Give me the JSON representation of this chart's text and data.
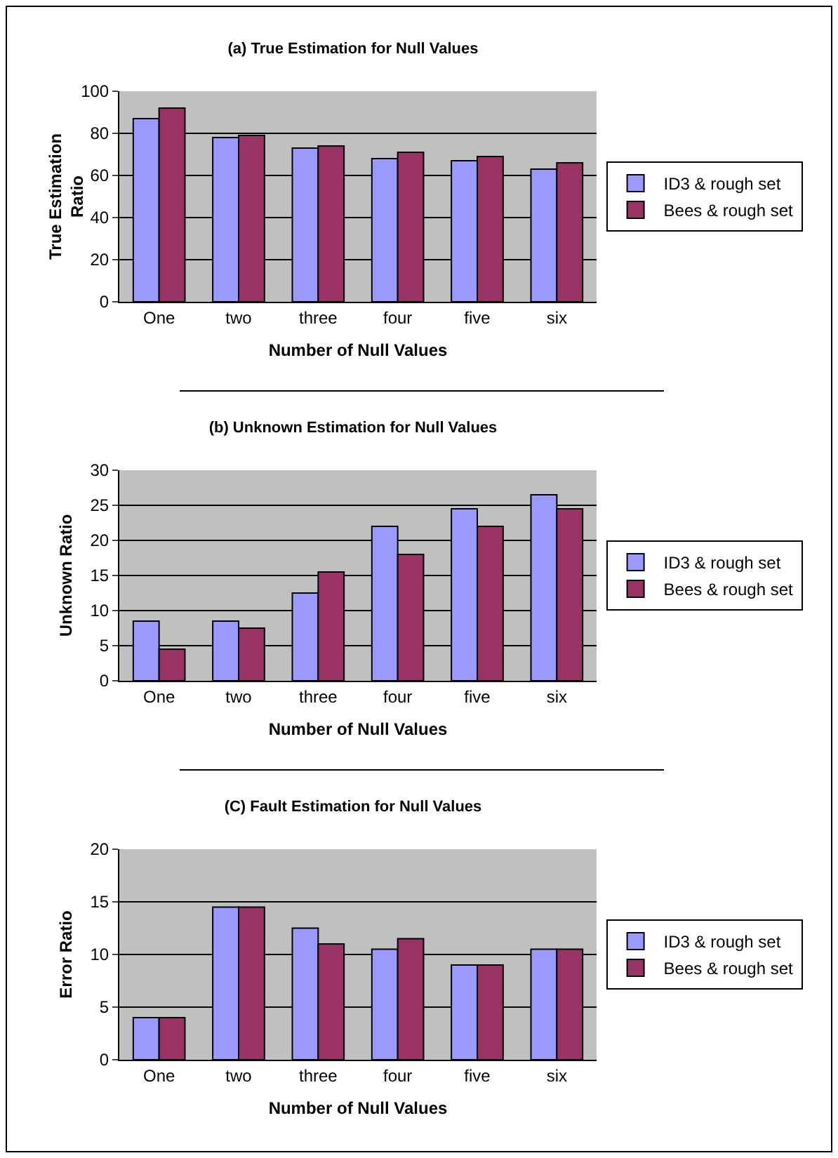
{
  "chart_data": [
    {
      "type": "bar",
      "title": "(a) True Estimation for Null Values",
      "xlabel": "Number of Null Values",
      "ylabel": "True Estimation Ratio",
      "categories": [
        "One",
        "two",
        "three",
        "four",
        "five",
        "six"
      ],
      "series": [
        {
          "name": "ID3 & rough set",
          "color": "#9999ff",
          "values": [
            87,
            78,
            73,
            68,
            67,
            63
          ]
        },
        {
          "name": "Bees & rough set",
          "color": "#993366",
          "values": [
            92,
            79,
            74,
            71,
            69,
            66
          ]
        }
      ],
      "ylim": [
        0,
        100
      ],
      "yticks": [
        0,
        20,
        40,
        60,
        80,
        100
      ],
      "grid": "y",
      "legend": "right"
    },
    {
      "type": "bar",
      "title": "(b) Unknown Estimation for Null Values",
      "xlabel": "Number of Null Values",
      "ylabel": "Unknown Ratio",
      "categories": [
        "One",
        "two",
        "three",
        "four",
        "five",
        "six"
      ],
      "series": [
        {
          "name": "ID3 & rough set",
          "color": "#9999ff",
          "values": [
            8.5,
            8.5,
            12.5,
            22,
            24.5,
            26.5
          ]
        },
        {
          "name": "Bees & rough set",
          "color": "#993366",
          "values": [
            4.5,
            7.5,
            15.5,
            18,
            22,
            24.5
          ]
        }
      ],
      "ylim": [
        0,
        30
      ],
      "yticks": [
        0,
        5,
        10,
        15,
        20,
        25,
        30
      ],
      "grid": "y",
      "legend": "right"
    },
    {
      "type": "bar",
      "title": "(C) Fault Estimation for Null Values",
      "xlabel": "Number of Null Values",
      "ylabel": "Error Ratio",
      "categories": [
        "One",
        "two",
        "three",
        "four",
        "five",
        "six"
      ],
      "series": [
        {
          "name": "ID3 & rough set",
          "color": "#9999ff",
          "values": [
            4,
            14.5,
            12.5,
            10.5,
            9,
            10.5
          ]
        },
        {
          "name": "Bees & rough set",
          "color": "#993366",
          "values": [
            4,
            14.5,
            11,
            11.5,
            9,
            10.5
          ]
        }
      ],
      "ylim": [
        0,
        20
      ],
      "yticks": [
        0,
        5,
        10,
        15,
        20
      ],
      "grid": "y",
      "legend": "right"
    }
  ]
}
